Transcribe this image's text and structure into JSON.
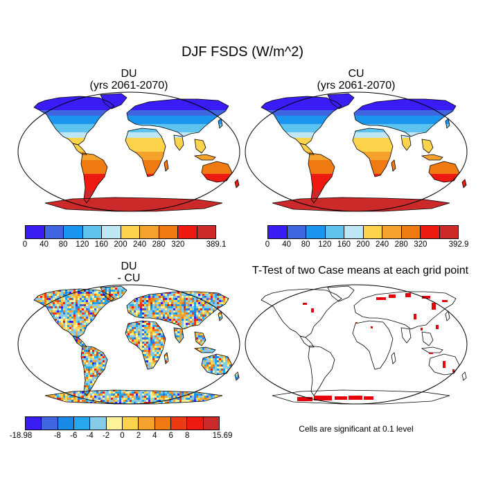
{
  "title": "DJF FSDS (W/m^2)",
  "panels": [
    {
      "id": "du",
      "title_line1": "DU",
      "title_line2": "(yrs 2061-2070)",
      "type": "absolute"
    },
    {
      "id": "cu",
      "title_line1": "CU",
      "title_line2": "(yrs 2061-2070)",
      "type": "absolute"
    },
    {
      "id": "diff",
      "title_line1": "DU",
      "title_line2": "- CU",
      "type": "difference"
    },
    {
      "id": "ttest",
      "title_line1": "T-Test of two Case means at each grid point",
      "title_line2": "",
      "type": "significance"
    }
  ],
  "colorbar_abs_du": {
    "colors": [
      "#3a1cf5",
      "#3f66e0",
      "#1a96f0",
      "#5ec3ee",
      "#bfe6f5",
      "#fcd34a",
      "#f5a22c",
      "#f07a12",
      "#ee1a12",
      "#cc2a2a"
    ],
    "labels": [
      "0",
      "40",
      "80",
      "120",
      "160",
      "200",
      "240",
      "280",
      "320",
      "389.1"
    ]
  },
  "colorbar_abs_cu": {
    "colors": [
      "#3a1cf5",
      "#3f66e0",
      "#1a96f0",
      "#5ec3ee",
      "#bfe6f5",
      "#fcd34a",
      "#f5a22c",
      "#f07a12",
      "#ee1a12",
      "#cc2a2a"
    ],
    "labels": [
      "0",
      "40",
      "80",
      "120",
      "160",
      "200",
      "240",
      "280",
      "320",
      "392.9"
    ]
  },
  "colorbar_diff": {
    "colors": [
      "#3a1cf5",
      "#3f66e0",
      "#1a8ae8",
      "#25a8ee",
      "#86cbe8",
      "#fcf29a",
      "#fcd34a",
      "#f5a22c",
      "#f07a12",
      "#ee3a12",
      "#ee1a12",
      "#cc2a2a"
    ],
    "labels": [
      "-18.98",
      "-8",
      "-6",
      "-4",
      "-2",
      "0",
      "2",
      "4",
      "6",
      "8",
      "15.69"
    ]
  },
  "significance_note": "Cells are significant at 0.1 level",
  "significance_color": "#e8000b"
}
